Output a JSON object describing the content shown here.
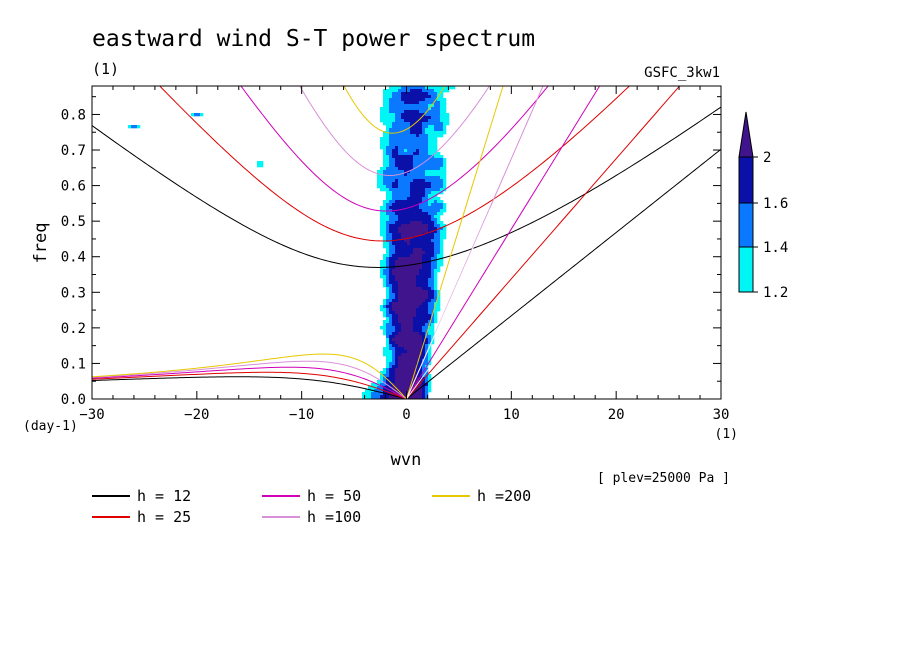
{
  "chart_data": {
    "type": "heatmap",
    "title": "eastward wind S-T power spectrum",
    "subtitle_left": "(1)",
    "subtitle_right": "GSFC_3kw1",
    "xlabel": "wvn",
    "ylabel": "freq",
    "x_unit": "(1)",
    "y_unit": "(day-1)",
    "note": "[ plev=25000 Pa ]",
    "xlim": [
      -30,
      30
    ],
    "ylim": [
      0,
      0.88
    ],
    "x_ticks": [
      -30,
      -20,
      -10,
      0,
      10,
      20,
      30
    ],
    "y_ticks": [
      0.0,
      0.1,
      0.2,
      0.3,
      0.4,
      0.5,
      0.6,
      0.7,
      0.8
    ],
    "y_tick_labels": [
      "0.0",
      "0.1",
      "0.2",
      "0.3",
      "0.4",
      "0.5",
      "0.6",
      "0.7",
      "0.8"
    ],
    "grid": false,
    "colorbar": {
      "levels": [
        "1.2",
        "1.4",
        "1.6",
        "2"
      ],
      "colors": [
        "#00f5f5",
        "#0a78ff",
        "#0a10a8",
        "#40148c"
      ]
    },
    "series": [
      {
        "name": "h = 12",
        "color": "#000000",
        "h": 12
      },
      {
        "name": "h = 25",
        "color": "#e00000",
        "h": 25
      },
      {
        "name": "h = 50",
        "color": "#d000b8",
        "h": 50
      },
      {
        "name": "h =100",
        "color": "#d890d8",
        "h": 100
      },
      {
        "name": "h =200",
        "color": "#e8c800",
        "h": 200
      }
    ]
  }
}
